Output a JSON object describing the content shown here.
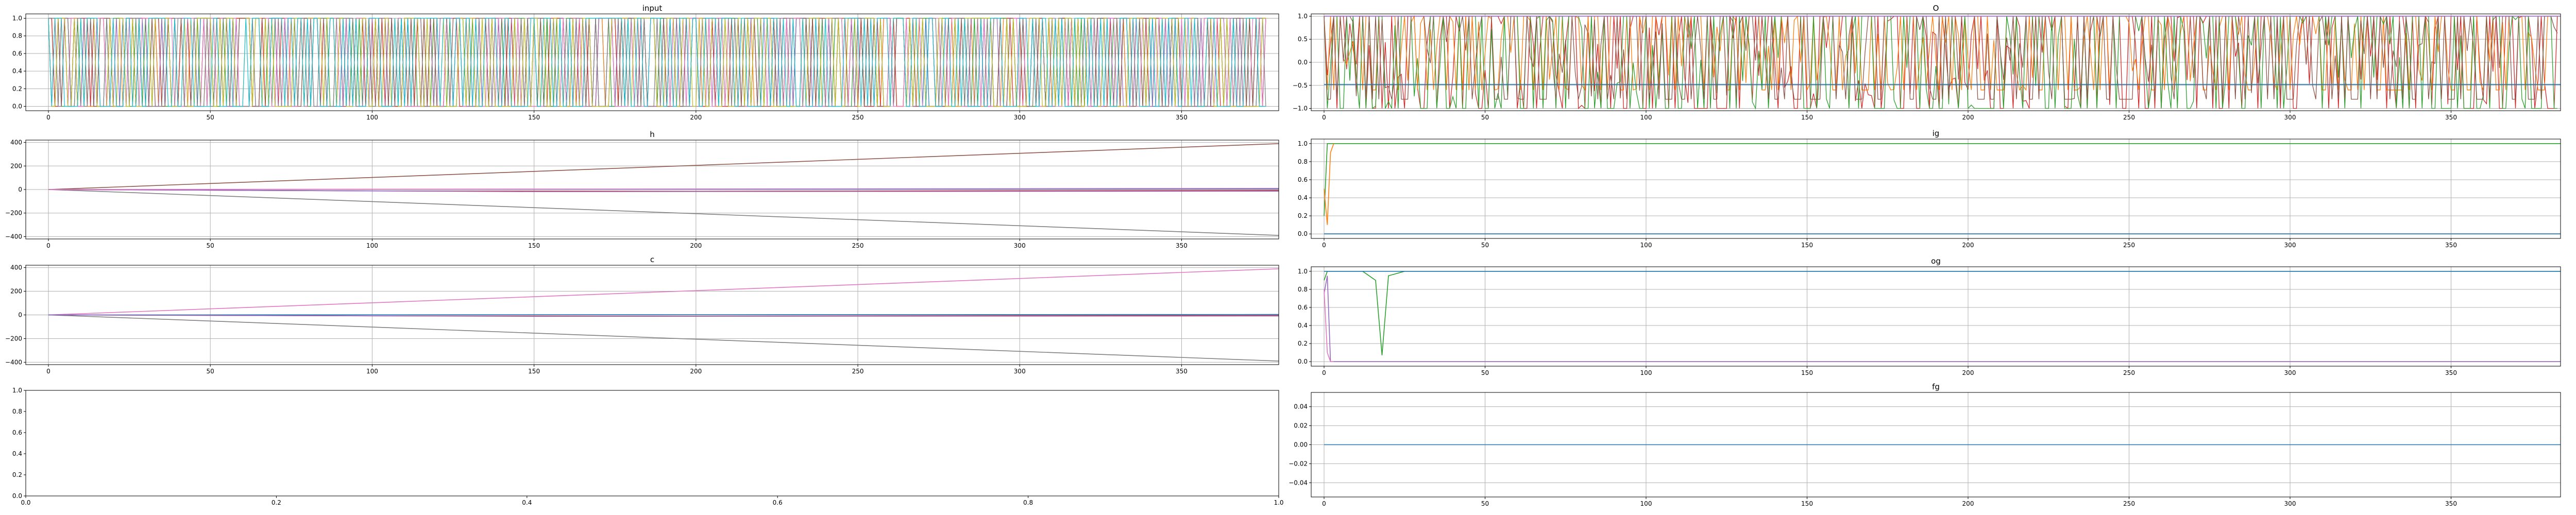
{
  "chart_data": [
    {
      "id": "input",
      "type": "line",
      "title": "input",
      "xlabel": "",
      "ylabel": "",
      "xlim": [
        -7,
        380
      ],
      "ylim": [
        -0.05,
        1.05
      ],
      "xticks": [
        0,
        50,
        100,
        150,
        200,
        250,
        300,
        350
      ],
      "yticks": [
        0.0,
        0.2,
        0.4,
        0.6,
        0.8,
        1.0
      ],
      "grid": true,
      "legend": "none",
      "series_kind": "dense_binary_switching",
      "series_count": 10,
      "n_points": 377,
      "value_range": [
        0.0,
        1.0
      ]
    },
    {
      "id": "o",
      "type": "line",
      "title": "O",
      "xlabel": "",
      "ylabel": "",
      "xlim": [
        -4,
        384
      ],
      "ylim": [
        -1.05,
        1.05
      ],
      "xticks": [
        0,
        50,
        100,
        150,
        200,
        250,
        300,
        350
      ],
      "yticks": [
        -1.0,
        -0.5,
        0.0,
        0.5,
        1.0
      ],
      "grid": true,
      "legend": "none",
      "series": [
        {
          "color": "#d62728",
          "range": [
            -1.0,
            1.0
          ],
          "kind": "oscillating"
        },
        {
          "color": "#ff7f0e",
          "range": [
            -0.6,
            1.0
          ],
          "kind": "oscillating"
        },
        {
          "color": "#2ca02c",
          "range": [
            -1.0,
            1.0
          ],
          "kind": "oscillating"
        },
        {
          "color": "#8c564b",
          "range": [
            -0.8,
            1.0
          ],
          "kind": "oscillating"
        },
        {
          "color": "#9467bd",
          "values_level": 1.0,
          "kind": "flat"
        },
        {
          "color": "#1f77b4",
          "values_level": -0.48,
          "kind": "flat"
        }
      ]
    },
    {
      "id": "h",
      "type": "line",
      "title": "h",
      "xlabel": "",
      "ylabel": "",
      "xlim": [
        -7,
        380
      ],
      "ylim": [
        -420,
        420
      ],
      "xticks": [
        0,
        50,
        100,
        150,
        200,
        250,
        300,
        350
      ],
      "yticks": [
        -400,
        -200,
        0,
        200,
        400
      ],
      "grid": true,
      "legend": "none",
      "series": [
        {
          "color": "#8c564b",
          "x": [
            0,
            380
          ],
          "y": [
            0,
            390
          ]
        },
        {
          "color": "#7f7f7f",
          "x": [
            0,
            380
          ],
          "y": [
            0,
            -390
          ]
        },
        {
          "color": "#d62728",
          "x": [
            0,
            100,
            200,
            300,
            380
          ],
          "y": [
            0,
            -12,
            -15,
            -10,
            -8
          ]
        },
        {
          "color": "#1f77b4",
          "x": [
            0,
            380
          ],
          "y": [
            0,
            5
          ]
        },
        {
          "color": "#9467bd",
          "x": [
            0,
            150,
            380
          ],
          "y": [
            0,
            -18,
            -14
          ]
        },
        {
          "color": "#e377c2",
          "x": [
            0,
            380
          ],
          "y": [
            0,
            10
          ]
        }
      ]
    },
    {
      "id": "ig",
      "type": "line",
      "title": "ig",
      "xlabel": "",
      "ylabel": "",
      "xlim": [
        -4,
        384
      ],
      "ylim": [
        -0.05,
        1.05
      ],
      "xticks": [
        0,
        50,
        100,
        150,
        200,
        250,
        300,
        350
      ],
      "yticks": [
        0.0,
        0.2,
        0.4,
        0.6,
        0.8,
        1.0
      ],
      "grid": true,
      "legend": "none",
      "series": [
        {
          "color": "#2ca02c",
          "x": [
            0,
            1,
            2,
            384
          ],
          "y": [
            0.2,
            1.0,
            1.0,
            1.0
          ]
        },
        {
          "color": "#ff7f0e",
          "x": [
            0,
            1,
            2,
            3
          ],
          "y": [
            0.5,
            0.1,
            0.9,
            1.0
          ]
        },
        {
          "color": "#8c564b",
          "x": [
            0,
            1,
            384
          ],
          "y": [
            0.0,
            0.0,
            0.0
          ]
        },
        {
          "color": "#1f77b4",
          "x": [
            0,
            384
          ],
          "y": [
            0.0,
            0.0
          ]
        }
      ]
    },
    {
      "id": "c",
      "type": "line",
      "title": "c",
      "xlabel": "",
      "ylabel": "",
      "xlim": [
        -7,
        380
      ],
      "ylim": [
        -420,
        420
      ],
      "xticks": [
        0,
        50,
        100,
        150,
        200,
        250,
        300,
        350
      ],
      "yticks": [
        -400,
        -200,
        0,
        200,
        400
      ],
      "grid": true,
      "legend": "none",
      "series": [
        {
          "color": "#e377c2",
          "x": [
            0,
            380
          ],
          "y": [
            0,
            390
          ]
        },
        {
          "color": "#7f7f7f",
          "x": [
            0,
            380
          ],
          "y": [
            0,
            -390
          ]
        },
        {
          "color": "#d62728",
          "x": [
            0,
            100,
            200,
            300,
            380
          ],
          "y": [
            0,
            -8,
            -10,
            -6,
            -5
          ]
        },
        {
          "color": "#1f77b4",
          "x": [
            0,
            380
          ],
          "y": [
            0,
            4
          ]
        },
        {
          "color": "#9467bd",
          "x": [
            0,
            150,
            380
          ],
          "y": [
            0,
            -12,
            -9
          ]
        }
      ]
    },
    {
      "id": "og",
      "type": "line",
      "title": "og",
      "xlabel": "",
      "ylabel": "",
      "xlim": [
        -4,
        384
      ],
      "ylim": [
        -0.05,
        1.05
      ],
      "xticks": [
        0,
        50,
        100,
        150,
        200,
        250,
        300,
        350
      ],
      "yticks": [
        0.0,
        0.2,
        0.4,
        0.6,
        0.8,
        1.0
      ],
      "grid": true,
      "legend": "none",
      "series": [
        {
          "color": "#2ca02c",
          "x": [
            0,
            1,
            12,
            16,
            18,
            20,
            25,
            384
          ],
          "y": [
            0.9,
            1.0,
            1.0,
            0.9,
            0.07,
            0.95,
            1.0,
            1.0
          ]
        },
        {
          "color": "#9467bd",
          "x": [
            0,
            1,
            2,
            384
          ],
          "y": [
            0.75,
            0.95,
            0.0,
            0.0
          ]
        },
        {
          "color": "#e377c2",
          "x": [
            0,
            1,
            2,
            3
          ],
          "y": [
            0.8,
            0.1,
            0.0,
            0.0
          ]
        },
        {
          "color": "#1f77b4",
          "x": [
            0,
            384
          ],
          "y": [
            1.0,
            1.0
          ]
        }
      ]
    },
    {
      "id": "empty",
      "type": "line",
      "title": "",
      "xlabel": "",
      "ylabel": "",
      "xlim": [
        0,
        1
      ],
      "ylim": [
        0,
        1
      ],
      "xticks": [
        0.0,
        0.2,
        0.4,
        0.6,
        0.8,
        1.0
      ],
      "yticks": [
        0.0,
        0.2,
        0.4,
        0.6,
        0.8,
        1.0
      ],
      "grid": false,
      "legend": "none",
      "series": []
    },
    {
      "id": "fg",
      "type": "line",
      "title": "fg",
      "xlabel": "",
      "ylabel": "",
      "xlim": [
        -4,
        384
      ],
      "ylim": [
        -0.055,
        0.055
      ],
      "xticks": [
        0,
        50,
        100,
        150,
        200,
        250,
        300,
        350
      ],
      "yticks": [
        -0.04,
        -0.02,
        0.0,
        0.02,
        0.04
      ],
      "grid": true,
      "legend": "none",
      "series": [
        {
          "color": "#1f77b4",
          "x": [
            0,
            384
          ],
          "y": [
            0.0,
            0.0
          ]
        }
      ]
    }
  ]
}
